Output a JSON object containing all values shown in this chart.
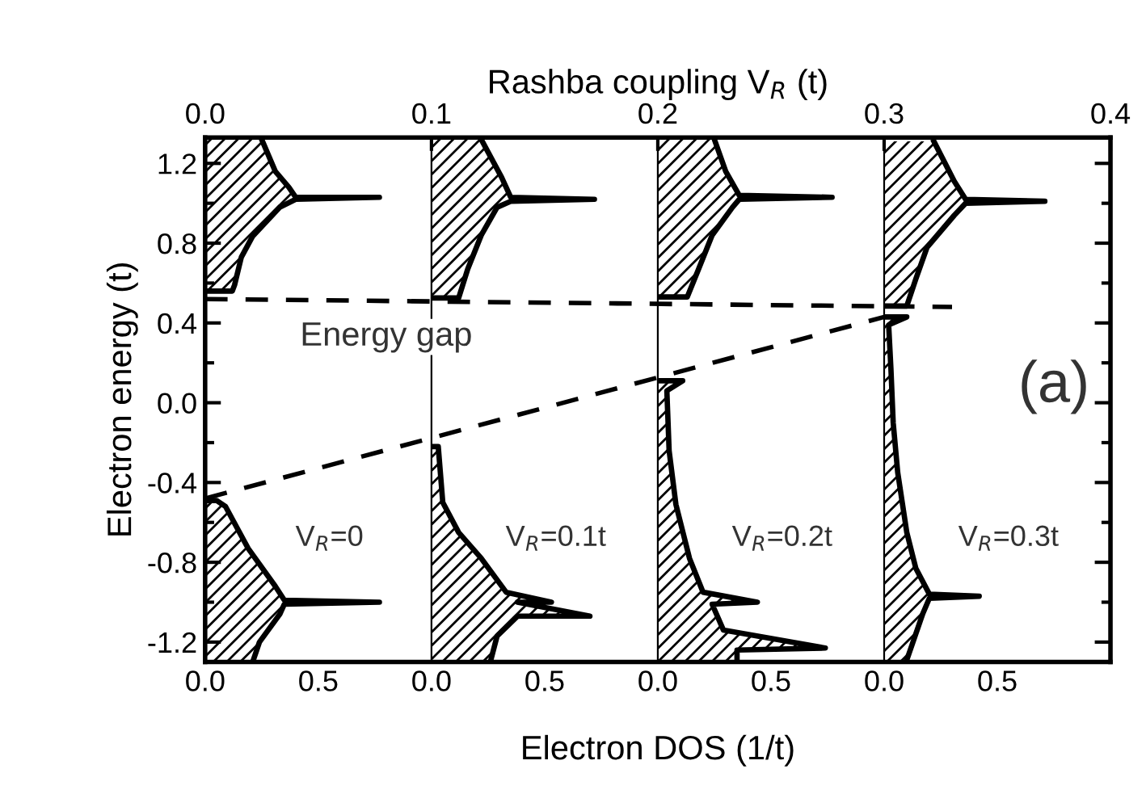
{
  "chart_data": [
    {
      "type": "line",
      "xlabel": "Rashba coupling V$_{R}$ (t)",
      "ylabel": "Electron energy (t)",
      "xlim": [
        0.0,
        0.4
      ],
      "xticks": [
        {
          "value": 0.0,
          "label": "0.0"
        },
        0.1,
        0.2,
        0.3,
        {
          "value": 0.4,
          "label": "0.4"
        }
      ],
      "ylim": [
        -1.3,
        1.33
      ],
      "yticks": [
        -1.2,
        -0.8,
        -0.4,
        {
          "value": 0.0,
          "label": "0.0"
        },
        0.4,
        0.8,
        1.2
      ],
      "line_style": "dashed",
      "marker": "none",
      "grid": "x",
      "legend": false,
      "annotations": [
        "Energy gap",
        "(a)"
      ],
      "series": [
        {
          "color": "#000000",
          "x": [
            0.0,
            0.33
          ],
          "values": [
            0.52,
            0.48
          ]
        },
        {
          "color": "#000000",
          "x": [
            0.0,
            0.3
          ],
          "values": [
            -0.48,
            0.43
          ]
        }
      ]
    },
    {
      "type": "area",
      "orientation": "horizontal",
      "xlim": [
        0.0,
        1.0
      ],
      "xticks": [
        {
          "value": 0.0,
          "label": "0.0"
        },
        0.5,
        {
          "value": 1.0,
          "label": null
        }
      ],
      "ylim": [
        -1.3,
        1.33
      ],
      "tick_labels": "x",
      "xlabel": "Electron DOS (1/t)",
      "annotations": [
        "V$_{R}$=0"
      ],
      "series": [
        {
          "color": "#000000",
          "x": [
            1.32,
            1.16,
            1.08,
            1.03,
            1.03,
            1.02,
            0.98,
            0.835,
            0.73,
            0.59,
            0.56,
            0.56
          ],
          "values": [
            0.25,
            0.31,
            0.37,
            0.4,
            0.77,
            0.4,
            0.33,
            0.21,
            0.16,
            0.13,
            0.12,
            0.0
          ]
        },
        {
          "color": "#000000",
          "x": [
            -0.49,
            -0.49,
            -0.52,
            -0.73,
            -0.92,
            -0.99,
            -1.0,
            -1.01,
            -1.06,
            -1.2,
            -1.3
          ],
          "values": [
            0.0,
            0.05,
            0.09,
            0.19,
            0.31,
            0.35,
            0.77,
            0.35,
            0.33,
            0.24,
            0.21
          ]
        }
      ]
    },
    {
      "type": "area",
      "orientation": "horizontal",
      "xlim": [
        0.0,
        1.0
      ],
      "xticks": [
        {
          "value": 0.0,
          "label": "0.0"
        },
        0.5,
        {
          "value": 1.0,
          "label": null
        }
      ],
      "ylim": [
        -1.3,
        1.33
      ],
      "tick_labels": "x",
      "annotations": [
        "V$_{R}$=0.1t"
      ],
      "series": [
        {
          "color": "#000000",
          "x": [
            1.32,
            1.13,
            1.03,
            1.02,
            1.01,
            0.98,
            0.84,
            0.67,
            0.525,
            0.525
          ],
          "values": [
            0.22,
            0.31,
            0.35,
            0.72,
            0.35,
            0.29,
            0.22,
            0.16,
            0.12,
            0.0
          ]
        },
        {
          "color": "#000000",
          "x": [
            -0.22,
            -0.22,
            -0.5,
            -0.65,
            -0.78,
            -0.95,
            -1.0,
            -1.0,
            -1.07,
            -1.07,
            -1.17,
            -1.3
          ],
          "values": [
            0.0,
            0.03,
            0.05,
            0.12,
            0.22,
            0.33,
            0.53,
            0.38,
            0.7,
            0.38,
            0.29,
            0.26
          ]
        }
      ]
    },
    {
      "type": "area",
      "orientation": "horizontal",
      "xlim": [
        0.0,
        1.0
      ],
      "xticks": [
        {
          "value": 0.0,
          "label": "0.0"
        },
        0.5,
        {
          "value": 1.0,
          "label": null
        }
      ],
      "ylim": [
        -1.3,
        1.33
      ],
      "tick_labels": "x",
      "annotations": [
        "V$_{R}$=0.2t"
      ],
      "series": [
        {
          "color": "#000000",
          "x": [
            1.32,
            1.16,
            1.04,
            1.03,
            1.02,
            0.98,
            0.84,
            0.67,
            0.53,
            0.53
          ],
          "values": [
            0.25,
            0.3,
            0.36,
            0.77,
            0.36,
            0.33,
            0.24,
            0.18,
            0.13,
            0.0
          ]
        },
        {
          "color": "#000000",
          "x": [
            0.11,
            0.11,
            0.06,
            -0.24,
            -0.51,
            -0.78,
            -0.95,
            -1.0,
            -1.01,
            -1.14,
            -1.23,
            -1.24,
            -1.3
          ],
          "values": [
            0.0,
            0.11,
            0.04,
            0.05,
            0.08,
            0.14,
            0.2,
            0.44,
            0.24,
            0.29,
            0.74,
            0.35,
            0.35
          ]
        }
      ]
    },
    {
      "type": "area",
      "orientation": "horizontal",
      "xlim": [
        0.0,
        1.0
      ],
      "xticks": [
        {
          "value": 0.0,
          "label": "0.0"
        },
        0.5
      ],
      "ylim": [
        -1.3,
        1.33
      ],
      "tick_labels": "x",
      "annotations": [
        "V$_{R}$=0.3t"
      ],
      "series": [
        {
          "color": "#000000",
          "x": [
            1.31,
            1.11,
            1.02,
            1.01,
            1.0,
            0.94,
            0.78,
            0.62,
            0.485,
            0.485
          ],
          "values": [
            0.22,
            0.31,
            0.36,
            0.71,
            0.36,
            0.31,
            0.19,
            0.14,
            0.1,
            0.0
          ]
        },
        {
          "color": "#000000",
          "x": [
            0.43,
            0.43,
            0.39,
            0.17,
            -0.1,
            -0.35,
            -0.65,
            -0.83,
            -0.96,
            -0.97,
            -0.98,
            -1.06,
            -1.29
          ],
          "values": [
            0.0,
            0.1,
            0.02,
            0.03,
            0.04,
            0.06,
            0.1,
            0.14,
            0.2,
            0.42,
            0.2,
            0.17,
            0.1
          ]
        }
      ]
    }
  ]
}
